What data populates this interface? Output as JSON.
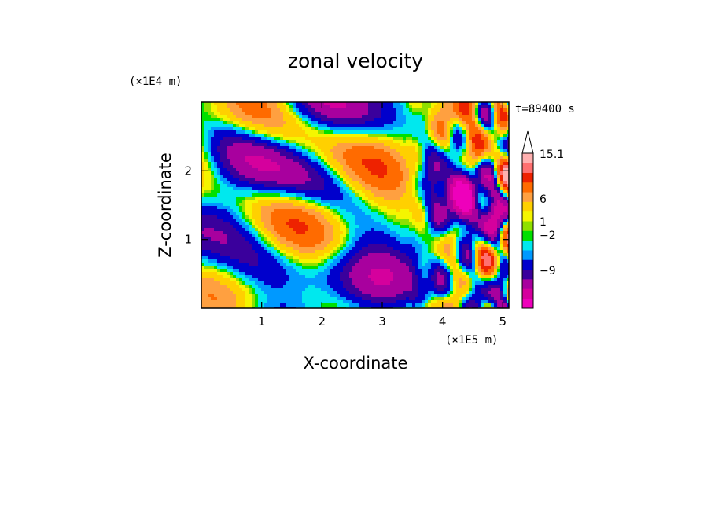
{
  "chart_data": {
    "type": "heatmap",
    "title": "zonal velocity",
    "xlabel": "X-coordinate",
    "ylabel": "Z-coordinate",
    "x_unit": "(×1E5 m)",
    "y_unit": "(×1E4 m)",
    "time_label": "t=89400 s",
    "x_ticks": [
      1,
      2,
      3,
      4,
      5
    ],
    "y_ticks": [
      1,
      2
    ],
    "xlim": [
      0,
      5.1
    ],
    "ylim": [
      0,
      3.0
    ],
    "colorbar": {
      "levels": [
        {
          "value": -15,
          "color": "#ee00bb"
        },
        {
          "value": -12,
          "color": "#d5009d"
        },
        {
          "value": -9,
          "color": "#a8009e"
        },
        {
          "value": -6,
          "color": "#3a009c"
        },
        {
          "value": -4,
          "color": "#0000cc"
        },
        {
          "value": -2,
          "color": "#0099ff"
        },
        {
          "value": -1,
          "color": "#00e8ee"
        },
        {
          "value": 0,
          "color": "#00e000"
        },
        {
          "value": 0.5,
          "color": "#8fe000"
        },
        {
          "value": 1,
          "color": "#f5f500"
        },
        {
          "value": 2,
          "color": "#ffd000"
        },
        {
          "value": 4,
          "color": "#ffa040"
        },
        {
          "value": 6,
          "color": "#ff6b00"
        },
        {
          "value": 9,
          "color": "#ee2200"
        },
        {
          "value": 12,
          "color": "#ff7070"
        },
        {
          "value": 15.1,
          "color": "#ffb0b0"
        }
      ],
      "tick_labels": [
        "15.1",
        "6",
        "1",
        "−2",
        "−9"
      ]
    }
  }
}
